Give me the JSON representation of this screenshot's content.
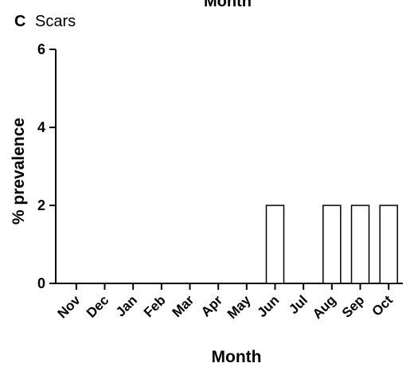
{
  "header": {
    "top_clip_text": "Month"
  },
  "panel": {
    "letter": "C",
    "title": "Scars"
  },
  "chart_data": {
    "type": "bar",
    "categories": [
      "Nov",
      "Dec",
      "Jan",
      "Feb",
      "Mar",
      "Apr",
      "May",
      "Jun",
      "Jul",
      "Aug",
      "Sep",
      "Oct"
    ],
    "values": [
      0,
      0,
      0,
      0,
      0,
      0,
      0,
      2,
      0,
      2,
      2,
      2
    ],
    "xlabel": "Month",
    "ylabel": "% prevalence",
    "ylim": [
      0,
      6
    ],
    "yticks": [
      0,
      2,
      4,
      6
    ],
    "bar_fill": "#ffffff",
    "bar_stroke": "#000000",
    "grid": false,
    "legend": "none"
  }
}
